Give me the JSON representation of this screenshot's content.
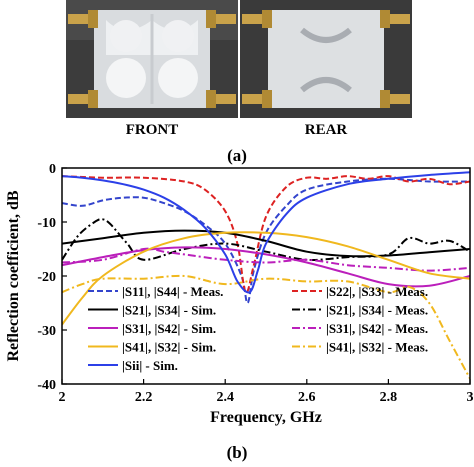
{
  "photos": {
    "front_caption": "FRONT",
    "rear_caption": "REAR",
    "panel_label": "(a)"
  },
  "figure": {
    "panel_label": "(b)"
  },
  "chart_data": {
    "type": "line",
    "xlabel": "Frequency, GHz",
    "ylabel": "Reflection coefficient, dB",
    "xlim": [
      2,
      3
    ],
    "ylim": [
      -40,
      0
    ],
    "xticks": [
      "2",
      "2.2",
      "2.4",
      "2.6",
      "2.8",
      "3"
    ],
    "yticks": [
      "0",
      "-10",
      "-20",
      "-30",
      "-40"
    ],
    "grid": false,
    "legend_position": "bottom",
    "series": [
      {
        "name": "|S11|, |S44| - Meas.",
        "color": "#3344cc",
        "style": "dashed",
        "x": [
          2.0,
          2.05,
          2.1,
          2.15,
          2.2,
          2.25,
          2.3,
          2.35,
          2.4,
          2.44,
          2.455,
          2.47,
          2.5,
          2.55,
          2.6,
          2.7,
          2.8,
          2.9,
          3.0
        ],
        "y": [
          -6.5,
          -7.0,
          -6.0,
          -5.5,
          -5.5,
          -6.5,
          -8.0,
          -10.5,
          -14.0,
          -20.0,
          -25.0,
          -19.0,
          -12.0,
          -7.0,
          -4.0,
          -2.5,
          -2.0,
          -2.5,
          -2.5
        ]
      },
      {
        "name": "|S22|, |S33| - Meas.",
        "color": "#dd2222",
        "style": "dashed",
        "x": [
          2.0,
          2.1,
          2.2,
          2.3,
          2.35,
          2.4,
          2.43,
          2.45,
          2.47,
          2.5,
          2.55,
          2.6,
          2.65,
          2.7,
          2.75,
          2.8,
          2.85,
          2.9,
          2.95,
          3.0
        ],
        "y": [
          -1.5,
          -1.8,
          -1.8,
          -2.5,
          -4.0,
          -8.0,
          -14.0,
          -23.0,
          -18.0,
          -9.0,
          -3.5,
          -1.8,
          -2.0,
          -1.5,
          -2.0,
          -1.5,
          -2.5,
          -2.0,
          -3.0,
          -2.5
        ]
      },
      {
        "name": "|S21|, |S34| - Sim.",
        "color": "#000000",
        "style": "solid",
        "x": [
          2.0,
          2.1,
          2.2,
          2.3,
          2.4,
          2.5,
          2.6,
          2.7,
          2.8,
          2.9,
          3.0
        ],
        "y": [
          -14.0,
          -13.0,
          -12.0,
          -11.6,
          -12.0,
          -13.5,
          -15.5,
          -16.3,
          -16.2,
          -15.6,
          -15.0
        ]
      },
      {
        "name": "|S21|, |S34| - Meas.",
        "color": "#000000",
        "style": "dashdot",
        "x": [
          2.0,
          2.04,
          2.08,
          2.1,
          2.12,
          2.16,
          2.2,
          2.3,
          2.4,
          2.5,
          2.6,
          2.7,
          2.8,
          2.85,
          2.9,
          2.95,
          3.0
        ],
        "y": [
          -17.0,
          -12.5,
          -10.0,
          -9.5,
          -10.5,
          -14.0,
          -17.0,
          -15.0,
          -14.0,
          -15.5,
          -17.0,
          -16.5,
          -16.0,
          -13.0,
          -14.0,
          -13.5,
          -15.5
        ]
      },
      {
        "name": "|S31|, |S42| - Sim.",
        "color": "#bb1fbb",
        "style": "solid",
        "x": [
          2.0,
          2.1,
          2.2,
          2.3,
          2.4,
          2.5,
          2.6,
          2.7,
          2.8,
          2.9,
          3.0
        ],
        "y": [
          -18.0,
          -16.5,
          -15.2,
          -14.7,
          -15.0,
          -16.0,
          -17.5,
          -19.5,
          -21.5,
          -21.8,
          -20.0
        ]
      },
      {
        "name": "|S31|, |S42| - Meas.",
        "color": "#bb1fbb",
        "style": "dashdot",
        "x": [
          2.0,
          2.1,
          2.2,
          2.25,
          2.3,
          2.4,
          2.5,
          2.6,
          2.7,
          2.8,
          2.9,
          3.0
        ],
        "y": [
          -17.5,
          -17.0,
          -15.0,
          -15.5,
          -16.0,
          -17.0,
          -17.5,
          -17.0,
          -18.0,
          -18.5,
          -19.0,
          -18.5
        ]
      },
      {
        "name": "|S41|, |S32| - Sim.",
        "color": "#f0b81e",
        "style": "solid",
        "x": [
          2.0,
          2.05,
          2.1,
          2.2,
          2.3,
          2.4,
          2.5,
          2.6,
          2.7,
          2.8,
          2.9,
          3.0
        ],
        "y": [
          -29.0,
          -24.0,
          -20.0,
          -15.5,
          -13.0,
          -12.0,
          -12.0,
          -12.8,
          -14.5,
          -17.0,
          -19.5,
          -20.5
        ]
      },
      {
        "name": "|S41|, |S32| - Meas.",
        "color": "#f0b81e",
        "style": "dashdot",
        "x": [
          2.0,
          2.05,
          2.1,
          2.2,
          2.3,
          2.4,
          2.5,
          2.6,
          2.7,
          2.8,
          2.85,
          2.9,
          2.95,
          3.0
        ],
        "y": [
          -23.0,
          -21.5,
          -20.5,
          -20.5,
          -20.0,
          -21.5,
          -20.5,
          -21.0,
          -21.0,
          -23.0,
          -22.0,
          -25.0,
          -32.0,
          -39.0
        ]
      },
      {
        "name": "|Sii| - Sim.",
        "color": "#2c40e8",
        "style": "solid",
        "x": [
          2.0,
          2.05,
          2.1,
          2.15,
          2.2,
          2.25,
          2.3,
          2.35,
          2.4,
          2.43,
          2.46,
          2.48,
          2.5,
          2.55,
          2.6,
          2.7,
          2.8,
          2.9,
          3.0
        ],
        "y": [
          -1.5,
          -1.8,
          -2.3,
          -3.0,
          -4.0,
          -5.5,
          -7.8,
          -11.0,
          -16.0,
          -21.0,
          -23.0,
          -19.0,
          -14.0,
          -8.5,
          -5.5,
          -3.0,
          -2.0,
          -1.3,
          -0.8
        ]
      }
    ],
    "legend_order": [
      0,
      1,
      2,
      3,
      4,
      5,
      6,
      7,
      8
    ]
  }
}
